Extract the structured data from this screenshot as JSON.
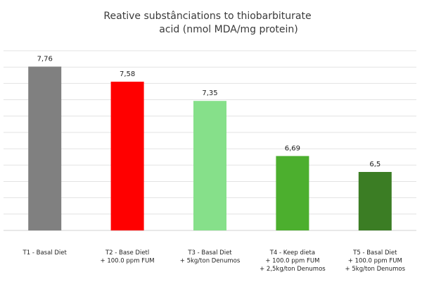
{
  "chart_data": {
    "type": "bar",
    "title_lines": [
      "Reative substânciations to thiobarbiturate",
      "acid (nmol MDA/mg protein)"
    ],
    "categories": [
      [
        "T1 - Basal Diet"
      ],
      [
        "T2 - Base Dietl",
        "+ 100.0 ppm FUM"
      ],
      [
        "T3 - Basal Diet",
        "+ 5kg/ton Denumos"
      ],
      [
        "T4 - Keep dieta",
        "+ 100.0 ppm FUM",
        "+ 2,5kg/ton Denumos"
      ],
      [
        "T5 - Basal Diet",
        "+ 100.0 ppm FUM",
        "+ 5kg/ton Denumos"
      ]
    ],
    "values": [
      7.76,
      7.58,
      7.35,
      6.69,
      6.5
    ],
    "value_labels": [
      "7,76",
      "7,58",
      "7,35",
      "6,69",
      "6,5"
    ],
    "colors": [
      "#808080",
      "#ff0000",
      "#86e08a",
      "#4caf2e",
      "#3b7d24"
    ],
    "ylim": [
      5.8,
      7.95
    ],
    "grid": true,
    "y_axis_labels_shown": false,
    "legend": "none"
  }
}
